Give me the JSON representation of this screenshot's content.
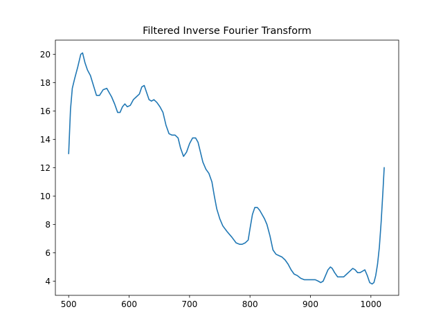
{
  "chart_data": {
    "type": "line",
    "title": "Filtered Inverse Fourier Transform",
    "xlabel": "",
    "ylabel": "",
    "xlim": [
      478,
      1046
    ],
    "ylim": [
      3.0,
      21.0
    ],
    "xticks": [
      500,
      600,
      700,
      800,
      900,
      1000
    ],
    "yticks": [
      4,
      6,
      8,
      10,
      12,
      14,
      16,
      18,
      20
    ],
    "grid": false,
    "legend": "none",
    "colors": {
      "line": "#1f77b4",
      "axes": "#000000",
      "background": "#ffffff"
    },
    "series": [
      {
        "x": [
          500,
          503,
          506,
          510,
          515,
          520,
          523,
          527,
          531,
          536,
          541,
          546,
          551,
          557,
          563,
          567,
          571,
          576,
          581,
          585,
          589,
          593,
          597,
          602,
          607,
          612,
          617,
          621,
          625,
          629,
          633,
          637,
          641,
          646,
          651,
          656,
          661,
          666,
          671,
          676,
          681,
          685,
          690,
          695,
          700,
          705,
          710,
          714,
          718,
          722,
          727,
          732,
          737,
          741,
          745,
          750,
          755,
          762,
          770,
          777,
          783,
          787,
          792,
          797,
          800,
          804,
          808,
          812,
          816,
          820,
          824,
          828,
          833,
          838,
          843,
          848,
          853,
          858,
          863,
          868,
          873,
          878,
          884,
          890,
          896,
          902,
          908,
          913,
          917,
          921,
          925,
          929,
          933,
          936,
          940,
          945,
          950,
          955,
          960,
          965,
          970,
          974,
          978,
          982,
          986,
          990,
          994,
          998,
          1002,
          1005,
          1008,
          1011,
          1014,
          1017,
          1020,
          1022
        ],
        "y": [
          13.0,
          16.1,
          17.6,
          18.3,
          19.1,
          20.0,
          20.1,
          19.4,
          18.9,
          18.5,
          17.8,
          17.1,
          17.1,
          17.5,
          17.6,
          17.3,
          17.0,
          16.5,
          15.9,
          15.9,
          16.3,
          16.5,
          16.3,
          16.4,
          16.8,
          17.0,
          17.2,
          17.7,
          17.8,
          17.3,
          16.8,
          16.7,
          16.8,
          16.6,
          16.3,
          15.9,
          15.0,
          14.4,
          14.3,
          14.3,
          14.1,
          13.4,
          12.8,
          13.1,
          13.7,
          14.1,
          14.1,
          13.8,
          13.1,
          12.4,
          11.9,
          11.6,
          11.0,
          10.0,
          9.1,
          8.4,
          7.9,
          7.5,
          7.1,
          6.7,
          6.6,
          6.6,
          6.7,
          6.9,
          7.7,
          8.7,
          9.2,
          9.2,
          9.0,
          8.7,
          8.4,
          8.0,
          7.2,
          6.2,
          5.9,
          5.8,
          5.7,
          5.5,
          5.2,
          4.8,
          4.5,
          4.4,
          4.2,
          4.1,
          4.1,
          4.1,
          4.1,
          4.0,
          3.9,
          4.0,
          4.4,
          4.8,
          5.0,
          4.9,
          4.6,
          4.3,
          4.3,
          4.3,
          4.5,
          4.7,
          4.9,
          4.8,
          4.6,
          4.6,
          4.7,
          4.8,
          4.4,
          3.9,
          3.8,
          3.9,
          4.4,
          5.2,
          6.4,
          8.2,
          10.4,
          12.0
        ]
      }
    ]
  }
}
